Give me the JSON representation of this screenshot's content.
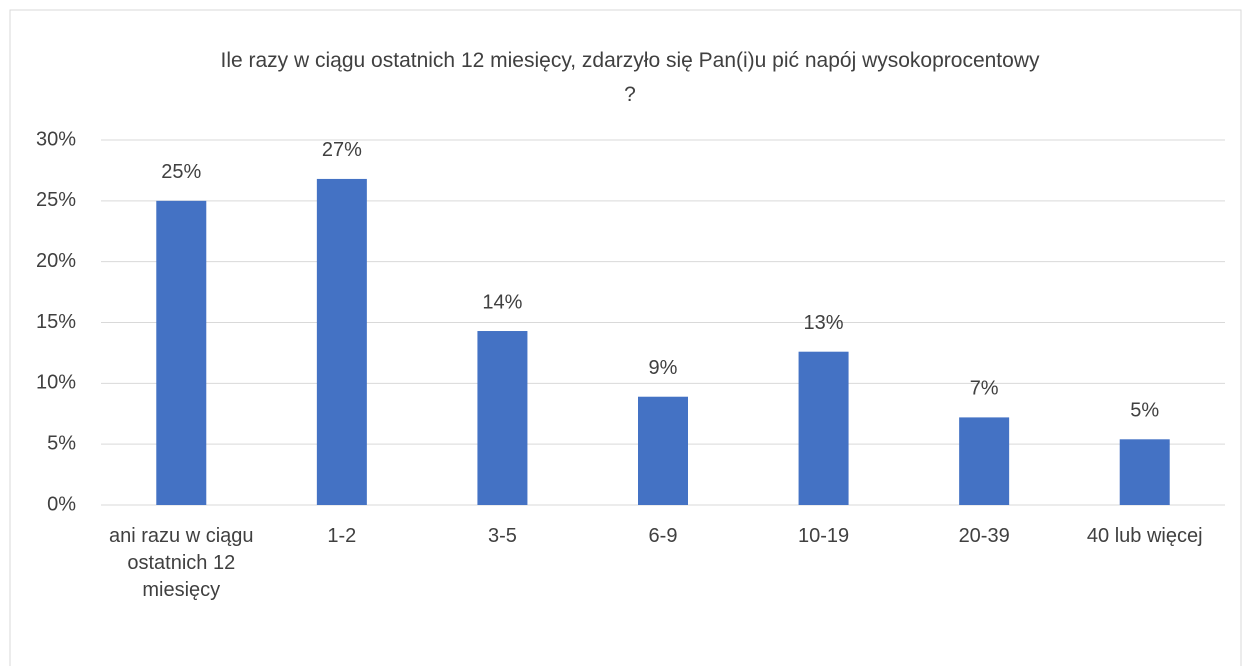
{
  "chart_data": {
    "type": "bar",
    "title": "Ile razy w ciągu ostatnich 12 miesięcy, zdarzyło się Pan(i)u pić napój wysokoprocentowy ?",
    "categories": [
      "ani razu w ciągu ostatnich 12 miesięcy",
      "1-2",
      "3-5",
      "6-9",
      "10-19",
      "20-39",
      "40 lub więcej"
    ],
    "values": [
      25,
      26.8,
      14.3,
      8.9,
      12.6,
      7.2,
      5.4
    ],
    "value_labels": [
      "25%",
      "27%",
      "14%",
      "9%",
      "13%",
      "7%",
      "5%"
    ],
    "color": "#4472c4",
    "ylim": [
      0,
      30
    ],
    "yticks": [
      {
        "value": 0,
        "label": "0%"
      },
      {
        "value": 5,
        "label": "5%"
      },
      {
        "value": 10,
        "label": "10%"
      },
      {
        "value": 15,
        "label": "15%"
      },
      {
        "value": 20,
        "label": "20%"
      },
      {
        "value": 25,
        "label": "25%"
      },
      {
        "value": 30,
        "label": "30%"
      }
    ],
    "grid": true
  }
}
